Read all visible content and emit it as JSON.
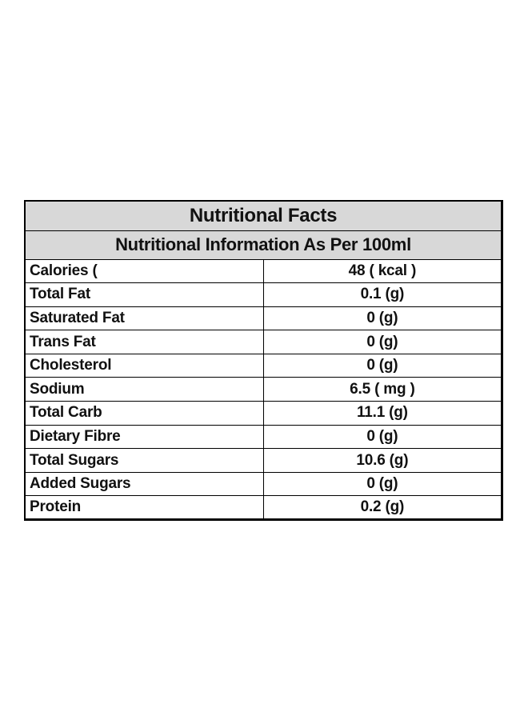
{
  "title": "Nutritional Facts",
  "subtitle": "Nutritional Information As Per 100ml",
  "rows": [
    {
      "name": "Calories (",
      "value": "48 ( kcal )"
    },
    {
      "name": "Total Fat",
      "value": "0.1 (g)"
    },
    {
      "name": "Saturated Fat",
      "value": "0 (g)"
    },
    {
      "name": "Trans Fat",
      "value": "0 (g)"
    },
    {
      "name": "Cholesterol",
      "value": "0 (g)"
    },
    {
      "name": "Sodium",
      "value": "6.5 ( mg )"
    },
    {
      "name": "Total Carb",
      "value": "11.1 (g)"
    },
    {
      "name": "Dietary Fibre",
      "value": "0 (g)"
    },
    {
      "name": "Total Sugars",
      "value": "10.6 (g)"
    },
    {
      "name": "Added Sugars",
      "value": "0 (g)"
    },
    {
      "name": "Protein",
      "value": "0.2 (g)"
    }
  ],
  "colors": {
    "header_background": "#d8d8d8",
    "border": "#000000",
    "text": "#111111"
  }
}
